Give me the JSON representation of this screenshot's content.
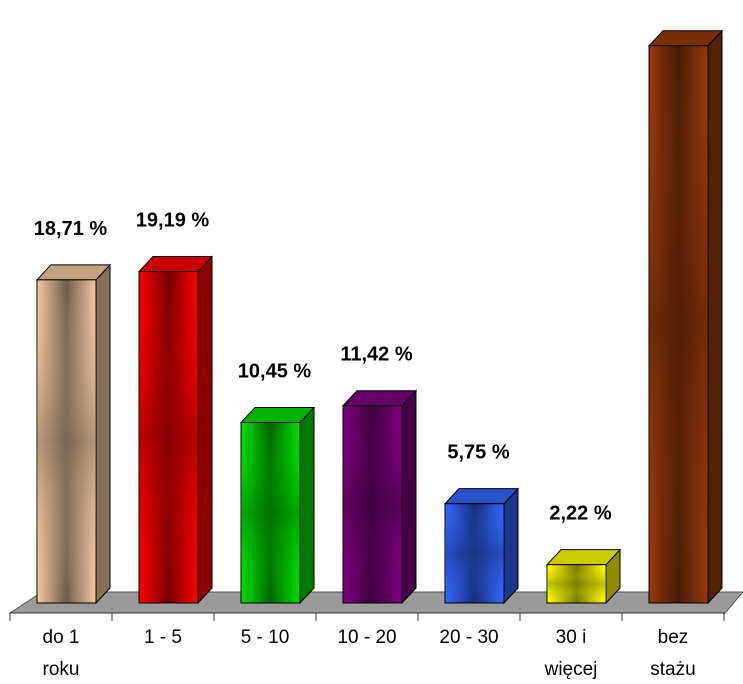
{
  "chart_data": {
    "type": "bar",
    "style": "3d-column",
    "title": "",
    "xlabel": "",
    "ylabel": "",
    "categories": [
      [
        "do 1",
        "roku"
      ],
      [
        "1 - 5"
      ],
      [
        "5 - 10"
      ],
      [
        "10 - 20"
      ],
      [
        "20 - 30"
      ],
      [
        "30 i",
        "więcej"
      ],
      [
        "bez",
        "stażu"
      ]
    ],
    "values": [
      18.71,
      19.19,
      10.45,
      11.42,
      5.75,
      2.22,
      32.26
    ],
    "data_labels": [
      "18,71 %",
      "19,19 %",
      "10,45 %",
      "11,42 %",
      "5,75 %",
      "2,22 %",
      null
    ],
    "colors": [
      "#F5C9A0",
      "#FF0000",
      "#00E000",
      "#800080",
      "#3366FF",
      "#FFFF00",
      "#9B3A0A"
    ],
    "ylim": [
      0,
      33
    ],
    "grid": false,
    "legend": "none",
    "floor_color": "#9A9A9A"
  }
}
